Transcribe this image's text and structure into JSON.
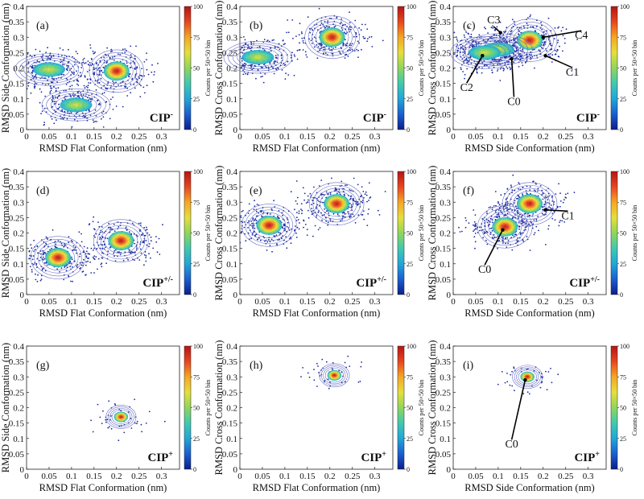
{
  "colors": {
    "colormap": [
      "#0b1e8c",
      "#1b5fd0",
      "#22a6d8",
      "#40c9b0",
      "#8fd65a",
      "#e6df3a",
      "#f5a623",
      "#e8451f",
      "#b71414"
    ],
    "scatter": "#1a2a9e",
    "contour": "#6a6fc4"
  },
  "chart_data": [
    {
      "panel": "(a)",
      "type": "scatter",
      "xlabel": "RMSD Flat Conformation (nm)",
      "ylabel": "RMSD Side Conformation (nm)",
      "xticks": [
        "0",
        "0.05",
        "0.1",
        "0.15",
        "0.2",
        "0.25",
        "0.3"
      ],
      "yticks": [
        "0",
        "0.05",
        "0.1",
        "0.15",
        "0.2",
        "0.25",
        "0.3",
        "0.35",
        "0.4"
      ],
      "xlim": [
        0,
        0.34
      ],
      "ylim": [
        0,
        0.4
      ],
      "colorbar": {
        "label": "Counts per 50×50 bin",
        "ticks": [
          "0",
          "25",
          "50",
          "75",
          "100"
        ],
        "range": [
          0,
          100
        ]
      },
      "system": "CIP-",
      "clusters": [
        {
          "x": 0.2,
          "y": 0.19,
          "peak": 100
        },
        {
          "x": 0.05,
          "y": 0.195,
          "peak": 60
        },
        {
          "x": 0.11,
          "y": 0.08,
          "peak": 40
        }
      ],
      "annotations": []
    },
    {
      "panel": "(b)",
      "type": "scatter",
      "xlabel": "RMSD Flat Conformation (nm)",
      "ylabel": "RMSD Cross Conformation (nm)",
      "xticks": [
        "0",
        "0.05",
        "0.1",
        "0.15",
        "0.2",
        "0.25",
        "0.3"
      ],
      "yticks": [
        "0",
        "0.05",
        "0.1",
        "0.15",
        "0.2",
        "0.25",
        "0.3",
        "0.35",
        "0.4"
      ],
      "xlim": [
        0,
        0.34
      ],
      "ylim": [
        0,
        0.4
      ],
      "colorbar": {
        "label": "Counts per 50×50 bin",
        "ticks": [
          "0",
          "25",
          "50",
          "75",
          "100"
        ],
        "range": [
          0,
          100
        ]
      },
      "system": "CIP-",
      "clusters": [
        {
          "x": 0.205,
          "y": 0.3,
          "peak": 100
        },
        {
          "x": 0.04,
          "y": 0.235,
          "peak": 30
        }
      ],
      "annotations": []
    },
    {
      "panel": "(c)",
      "type": "scatter",
      "xlabel": "RMSD Side Conformation (nm)",
      "ylabel": "RMSD Cross Conformation (nm)",
      "xticks": [
        "0",
        "0.05",
        "0.1",
        "0.15",
        "0.2",
        "0.25",
        "0.3"
      ],
      "yticks": [
        "0",
        "0.05",
        "0.1",
        "0.15",
        "0.2",
        "0.25",
        "0.3",
        "0.35",
        "0.4"
      ],
      "xlim": [
        0,
        0.34
      ],
      "ylim": [
        0,
        0.4
      ],
      "colorbar": {
        "label": "Counts per 50×50 bin",
        "ticks": [
          "0",
          "25",
          "50",
          "75",
          "100"
        ],
        "range": [
          0,
          100
        ]
      },
      "system": "CIP-",
      "clusters": [
        {
          "x": 0.17,
          "y": 0.29,
          "peak": 100
        },
        {
          "x": 0.1,
          "y": 0.26,
          "peak": 70
        },
        {
          "x": 0.07,
          "y": 0.25,
          "peak": 50
        }
      ],
      "annotations": [
        {
          "text": "C3",
          "x": 0.09,
          "y": 0.345,
          "tx": 0.105,
          "ty": 0.315
        },
        {
          "text": "C4",
          "x": 0.285,
          "y": 0.295,
          "tx": 0.2,
          "ty": 0.3
        },
        {
          "text": "C1",
          "x": 0.265,
          "y": 0.175,
          "tx": 0.205,
          "ty": 0.24
        },
        {
          "text": "C2",
          "x": 0.03,
          "y": 0.125,
          "tx": 0.065,
          "ty": 0.24
        },
        {
          "text": "C0",
          "x": 0.135,
          "y": 0.08,
          "tx": 0.13,
          "ty": 0.23
        }
      ]
    },
    {
      "panel": "(d)",
      "type": "scatter",
      "xlabel": "RMSD Flat Conformation (nm)",
      "ylabel": "RMSD Side Conformation (nm)",
      "xticks": [
        "0",
        "0.05",
        "0.1",
        "0.15",
        "0.2",
        "0.25",
        "0.3"
      ],
      "yticks": [
        "0",
        "0.05",
        "0.1",
        "0.15",
        "0.2",
        "0.25",
        "0.3",
        "0.35",
        "0.4"
      ],
      "xlim": [
        0,
        0.34
      ],
      "ylim": [
        0,
        0.4
      ],
      "colorbar": {
        "label": "Counts per 50×50 bin",
        "ticks": [
          "0",
          "25",
          "50",
          "75",
          "100"
        ],
        "range": [
          0,
          100
        ]
      },
      "system": "CIP+/-",
      "clusters": [
        {
          "x": 0.07,
          "y": 0.12,
          "peak": 100
        },
        {
          "x": 0.21,
          "y": 0.175,
          "peak": 100
        }
      ],
      "annotations": []
    },
    {
      "panel": "(e)",
      "type": "scatter",
      "xlabel": "RMSD Flat Conformation (nm)",
      "ylabel": "RMSD Cross Conformation (nm)",
      "xticks": [
        "0",
        "0.05",
        "0.1",
        "0.15",
        "0.2",
        "0.25",
        "0.3"
      ],
      "yticks": [
        "0",
        "0.05",
        "0.1",
        "0.15",
        "0.2",
        "0.25",
        "0.3",
        "0.35",
        "0.4"
      ],
      "xlim": [
        0,
        0.34
      ],
      "ylim": [
        0,
        0.4
      ],
      "colorbar": {
        "label": "Counts per 50×50 bin",
        "ticks": [
          "0",
          "25",
          "50",
          "75",
          "100"
        ],
        "range": [
          0,
          100
        ]
      },
      "system": "CIP+/-",
      "clusters": [
        {
          "x": 0.065,
          "y": 0.225,
          "peak": 100
        },
        {
          "x": 0.215,
          "y": 0.295,
          "peak": 100
        }
      ],
      "annotations": []
    },
    {
      "panel": "(f)",
      "type": "scatter",
      "xlabel": "RMSD Side Conformation (nm)",
      "ylabel": "RMSD Cross Conformation (nm)",
      "xticks": [
        "0",
        "0.05",
        "0.1",
        "0.15",
        "0.2",
        "0.25",
        "0.3"
      ],
      "yticks": [
        "0",
        "0.05",
        "0.1",
        "0.15",
        "0.2",
        "0.25",
        "0.3",
        "0.35",
        "0.4"
      ],
      "xlim": [
        0,
        0.34
      ],
      "ylim": [
        0,
        0.4
      ],
      "colorbar": {
        "label": "Counts per 50×50 bin",
        "ticks": [
          "0",
          "25",
          "50",
          "75",
          "100"
        ],
        "range": [
          0,
          100
        ]
      },
      "system": "CIP+/-",
      "clusters": [
        {
          "x": 0.115,
          "y": 0.22,
          "peak": 100
        },
        {
          "x": 0.17,
          "y": 0.295,
          "peak": 100
        }
      ],
      "annotations": [
        {
          "text": "C1",
          "x": 0.255,
          "y": 0.245,
          "tx": 0.205,
          "ty": 0.275
        },
        {
          "text": "C0",
          "x": 0.07,
          "y": 0.07,
          "tx": 0.11,
          "ty": 0.21
        }
      ]
    },
    {
      "panel": "(g)",
      "type": "scatter",
      "xlabel": "RMSD Flat Conformation (nm)",
      "ylabel": "RMSD Side Conformation (nm)",
      "xticks": [
        "0",
        "0.05",
        "0.1",
        "0.15",
        "0.2",
        "0.25",
        "0.3"
      ],
      "yticks": [
        "0",
        "0.05",
        "0.1",
        "0.15",
        "0.2",
        "0.25",
        "0.3",
        "0.35",
        "0.4"
      ],
      "xlim": [
        0,
        0.34
      ],
      "ylim": [
        0,
        0.4
      ],
      "colorbar": {
        "label": "Counts per 50×50 bin",
        "ticks": [
          "0",
          "25",
          "50",
          "75",
          "100"
        ],
        "range": [
          0,
          100
        ]
      },
      "system": "CIP+",
      "clusters": [
        {
          "x": 0.21,
          "y": 0.17,
          "peak": 100
        }
      ],
      "annotations": []
    },
    {
      "panel": "(h)",
      "type": "scatter",
      "xlabel": "RMSD Flat Conformation (nm)",
      "ylabel": "RMSD Cross Conformation (nm)",
      "xticks": [
        "0",
        "0.05",
        "0.1",
        "0.15",
        "0.2",
        "0.25",
        "0.3"
      ],
      "yticks": [
        "0",
        "0.05",
        "0.1",
        "0.15",
        "0.2",
        "0.25",
        "0.3",
        "0.35",
        "0.4"
      ],
      "xlim": [
        0,
        0.34
      ],
      "ylim": [
        0,
        0.4
      ],
      "colorbar": {
        "label": "Counts per 50×50 bin",
        "ticks": [
          "0",
          "25",
          "50",
          "75",
          "100"
        ],
        "range": [
          0,
          100
        ]
      },
      "system": "CIP+",
      "clusters": [
        {
          "x": 0.21,
          "y": 0.305,
          "peak": 100
        }
      ],
      "annotations": []
    },
    {
      "panel": "(i)",
      "type": "scatter",
      "xlabel": "RMSD Side Conformation (nm)",
      "ylabel": "RMSD Cross Conformation (nm)",
      "xticks": [
        "0",
        "0.05",
        "0.1",
        "0.15",
        "0.2",
        "0.25",
        "0.3"
      ],
      "yticks": [
        "0",
        "0.05",
        "0.1",
        "0.15",
        "0.2",
        "0.25",
        "0.3",
        "0.35",
        "0.4"
      ],
      "xlim": [
        0,
        0.34
      ],
      "ylim": [
        0,
        0.4
      ],
      "colorbar": {
        "label": "Counts per 50×50 bin",
        "ticks": [
          "0",
          "25",
          "50",
          "75",
          "100"
        ],
        "range": [
          0,
          100
        ]
      },
      "system": "CIP+",
      "clusters": [
        {
          "x": 0.165,
          "y": 0.3,
          "peak": 100
        }
      ],
      "annotations": [
        {
          "text": "C0",
          "x": 0.13,
          "y": 0.07,
          "tx": 0.16,
          "ty": 0.29
        }
      ]
    }
  ]
}
